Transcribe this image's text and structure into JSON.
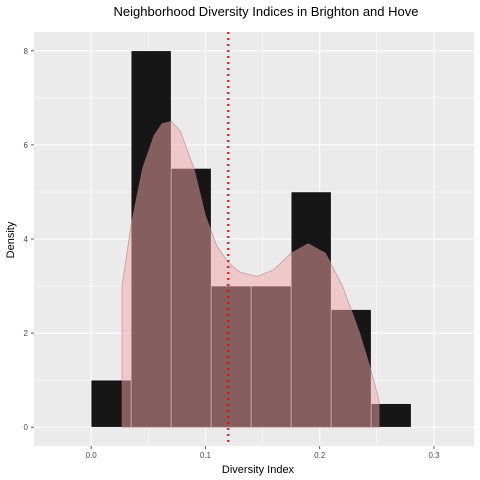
{
  "chart_data": {
    "type": "bar",
    "title": "Neighborhood Diversity Indices in Brighton and Hove",
    "xlabel": "Diversity Index",
    "ylabel": "Density",
    "xlim": [
      -0.05,
      0.335
    ],
    "ylim": [
      -0.4,
      8.4
    ],
    "x_ticks": [
      0.0,
      0.1,
      0.2,
      0.3
    ],
    "x_tick_labels": [
      "0.0",
      "0.1",
      "0.2",
      "0.3"
    ],
    "y_ticks": [
      0,
      2,
      4,
      6,
      8
    ],
    "y_tick_labels": [
      "0",
      "2",
      "4",
      "6",
      "8"
    ],
    "grid": true,
    "bins": [
      {
        "x0": 0.0,
        "x1": 0.035,
        "density": 1.0
      },
      {
        "x0": 0.035,
        "x1": 0.07,
        "density": 8.0
      },
      {
        "x0": 0.07,
        "x1": 0.105,
        "density": 5.5
      },
      {
        "x0": 0.105,
        "x1": 0.14,
        "density": 3.0
      },
      {
        "x0": 0.14,
        "x1": 0.175,
        "density": 3.0
      },
      {
        "x0": 0.175,
        "x1": 0.21,
        "density": 5.0
      },
      {
        "x0": 0.21,
        "x1": 0.245,
        "density": 2.5
      },
      {
        "x0": 0.245,
        "x1": 0.28,
        "density": 0.5
      }
    ],
    "density_curve": {
      "x": [
        0.027,
        0.035,
        0.045,
        0.055,
        0.062,
        0.07,
        0.078,
        0.09,
        0.1,
        0.11,
        0.12,
        0.13,
        0.145,
        0.16,
        0.175,
        0.19,
        0.205,
        0.22,
        0.235,
        0.245,
        0.252
      ],
      "y": [
        3.0,
        4.3,
        5.5,
        6.2,
        6.45,
        6.5,
        6.3,
        5.5,
        4.5,
        3.85,
        3.5,
        3.3,
        3.2,
        3.35,
        3.7,
        3.9,
        3.7,
        3.0,
        2.0,
        1.2,
        0.55
      ]
    },
    "vline": {
      "x": 0.12
    },
    "colors": {
      "bar_fill": "#161616",
      "bar_stroke": "#ffffff",
      "density_fill": "#f4a6a8",
      "density_stroke": "#b07070",
      "vline": "#ff0000",
      "panel": "#ebebeb",
      "grid": "#ffffff"
    }
  }
}
